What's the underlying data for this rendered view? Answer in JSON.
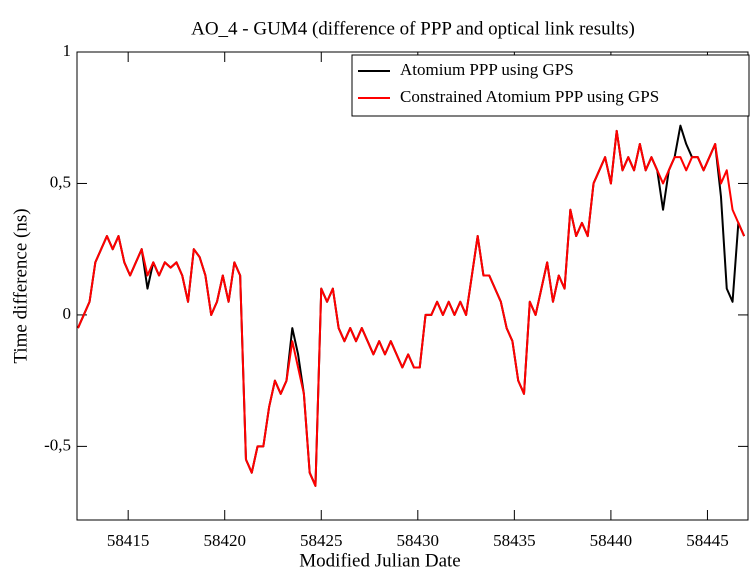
{
  "chart_data": {
    "type": "line",
    "title": "AO_4 - GUM4 (difference of PPP and optical link results)",
    "x_label": "Modified Julian Date",
    "y_label": "Time difference (ns)",
    "x": [
      58412.4,
      58412.7,
      58413,
      58413.3,
      58413.6,
      58413.9,
      58414.2,
      58414.5,
      58414.8,
      58415.1,
      58415.4,
      58415.7,
      58416,
      58416.3,
      58416.6,
      58416.9,
      58417.2,
      58417.5,
      58417.8,
      58418.1,
      58418.4,
      58418.7,
      58419,
      58419.3,
      58419.6,
      58419.9,
      58420.2,
      58420.5,
      58420.8,
      58421.1,
      58421.4,
      58421.7,
      58422,
      58422.3,
      58422.6,
      58422.9,
      58423.2,
      58423.5,
      58423.8,
      58424.1,
      58424.4,
      58424.7,
      58425,
      58425.3,
      58425.6,
      58425.9,
      58426.2,
      58426.5,
      58426.8,
      58427.1,
      58427.4,
      58427.7,
      58428,
      58428.3,
      58428.6,
      58428.9,
      58429.2,
      58429.5,
      58429.8,
      58430.1,
      58430.4,
      58430.7,
      58431,
      58431.3,
      58431.6,
      58431.9,
      58432.2,
      58432.5,
      58432.8,
      58433.1,
      58433.4,
      58433.7,
      58434,
      58434.3,
      58434.6,
      58434.9,
      58435.2,
      58435.5,
      58435.8,
      58436.1,
      58436.4,
      58436.7,
      58437,
      58437.3,
      58437.6,
      58437.9,
      58438.2,
      58438.5,
      58438.8,
      58439.1,
      58439.4,
      58439.7,
      58440,
      58440.3,
      58440.6,
      58440.9,
      58441.2,
      58441.5,
      58441.8,
      58442.1,
      58442.4,
      58442.7,
      58443,
      58443.3,
      58443.6,
      58443.9,
      58444.2,
      58444.5,
      58444.8,
      58445.1,
      58445.4,
      58445.7,
      58446,
      58446.3,
      58446.6,
      58446.9
    ],
    "series": [
      {
        "name": "Atomium PPP using GPS",
        "color": "#000000",
        "values": [
          -0.05,
          0,
          0.05,
          0.2,
          0.25,
          0.3,
          0.25,
          0.3,
          0.2,
          0.15,
          0.2,
          0.25,
          0.1,
          0.2,
          0.15,
          0.2,
          0.18,
          0.2,
          0.15,
          0.05,
          0.25,
          0.22,
          0.15,
          0,
          0.05,
          0.15,
          0.05,
          0.2,
          0.15,
          -0.55,
          -0.6,
          -0.5,
          -0.5,
          -0.35,
          -0.25,
          -0.3,
          -0.25,
          -0.05,
          -0.15,
          -0.3,
          -0.6,
          -0.65,
          0.1,
          0.05,
          0.1,
          -0.05,
          -0.1,
          -0.05,
          -0.1,
          -0.05,
          -0.1,
          -0.15,
          -0.1,
          -0.15,
          -0.1,
          -0.15,
          -0.2,
          -0.15,
          -0.2,
          -0.2,
          0,
          0,
          0.05,
          0,
          0.05,
          0,
          0.05,
          0,
          0.15,
          0.3,
          0.15,
          0.15,
          0.1,
          0.05,
          -0.05,
          -0.1,
          -0.25,
          -0.3,
          0.05,
          0,
          0.1,
          0.2,
          0.05,
          0.15,
          0.1,
          0.4,
          0.3,
          0.35,
          0.3,
          0.5,
          0.55,
          0.6,
          0.5,
          0.7,
          0.55,
          0.6,
          0.55,
          0.65,
          0.55,
          0.6,
          0.55,
          0.4,
          0.55,
          0.6,
          0.72,
          0.65,
          0.6,
          0.6,
          0.55,
          0.6,
          0.65,
          0.45,
          0.1,
          0.05,
          0.35,
          0.3
        ]
      },
      {
        "name": "Constrained Atomium PPP using GPS",
        "color": "#ff0000",
        "values": [
          -0.05,
          0,
          0.05,
          0.2,
          0.25,
          0.3,
          0.25,
          0.3,
          0.2,
          0.15,
          0.2,
          0.25,
          0.15,
          0.2,
          0.15,
          0.2,
          0.18,
          0.2,
          0.15,
          0.05,
          0.25,
          0.22,
          0.15,
          0,
          0.05,
          0.15,
          0.05,
          0.2,
          0.15,
          -0.55,
          -0.6,
          -0.5,
          -0.5,
          -0.35,
          -0.25,
          -0.3,
          -0.25,
          -0.1,
          -0.2,
          -0.3,
          -0.6,
          -0.65,
          0.1,
          0.05,
          0.1,
          -0.05,
          -0.1,
          -0.05,
          -0.1,
          -0.05,
          -0.1,
          -0.15,
          -0.1,
          -0.15,
          -0.1,
          -0.15,
          -0.2,
          -0.15,
          -0.2,
          -0.2,
          0,
          0,
          0.05,
          0,
          0.05,
          0,
          0.05,
          0,
          0.15,
          0.3,
          0.15,
          0.15,
          0.1,
          0.05,
          -0.05,
          -0.1,
          -0.25,
          -0.3,
          0.05,
          0,
          0.1,
          0.2,
          0.05,
          0.15,
          0.1,
          0.4,
          0.3,
          0.35,
          0.3,
          0.5,
          0.55,
          0.6,
          0.5,
          0.7,
          0.55,
          0.6,
          0.55,
          0.65,
          0.55,
          0.6,
          0.55,
          0.5,
          0.55,
          0.6,
          0.6,
          0.55,
          0.6,
          0.6,
          0.55,
          0.6,
          0.65,
          0.5,
          0.55,
          0.4,
          0.35,
          0.3
        ]
      }
    ],
    "xlim": [
      58412.35,
      58447.1
    ],
    "ylim": [
      -0.78,
      1
    ],
    "xticks": [
      58415,
      58420,
      58425,
      58430,
      58435,
      58440,
      58445
    ],
    "yticks": [
      {
        "value": -0.5,
        "label": "-0,5"
      },
      0,
      {
        "value": 0.5,
        "label": "0,5"
      },
      1
    ],
    "legend": "top-right"
  }
}
